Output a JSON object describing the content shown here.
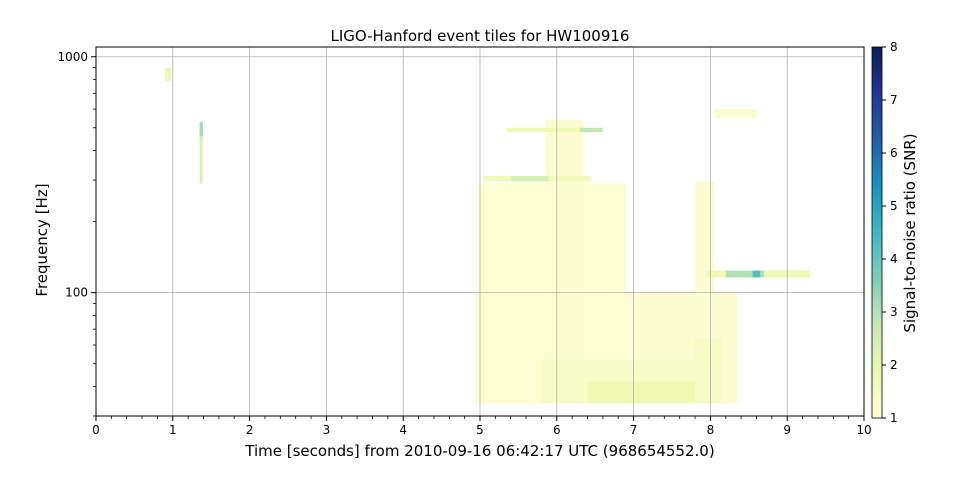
{
  "chart_data": {
    "type": "heatmap",
    "title": "LIGO-Hanford event tiles for HW100916",
    "xlabel": "Time [seconds] from 2010-09-16 06:42:17 UTC (968654552.0)",
    "ylabel": "Frequency [Hz]",
    "xlim": [
      0,
      10
    ],
    "ylim": [
      30,
      1100
    ],
    "yscale": "log",
    "x_ticks": [
      "0",
      "1",
      "2",
      "3",
      "4",
      "5",
      "6",
      "7",
      "8",
      "9",
      "10"
    ],
    "y_ticks": [
      "100",
      "1000"
    ],
    "grid": true,
    "colorbar": {
      "label": "Signal-to-noise ratio (SNR)",
      "range": [
        1,
        8
      ],
      "ticks": [
        "1",
        "2",
        "3",
        "4",
        "5",
        "6",
        "7",
        "8"
      ],
      "colormap": "YlGnBu"
    },
    "tiles": [
      {
        "t0": 4.95,
        "t1": 8.35,
        "f0": 34,
        "f1": 100,
        "snr": 1.2
      },
      {
        "t0": 4.97,
        "t1": 6.9,
        "f0": 34,
        "f1": 290,
        "snr": 1.15
      },
      {
        "t0": 5.85,
        "t1": 6.35,
        "f0": 34,
        "f1": 540,
        "snr": 1.2
      },
      {
        "t0": 7.8,
        "t1": 8.05,
        "f0": 34,
        "f1": 295,
        "snr": 1.2
      },
      {
        "t0": 5.8,
        "t1": 8.15,
        "f0": 34,
        "f1": 52,
        "snr": 1.4
      },
      {
        "t0": 6.4,
        "t1": 7.8,
        "f0": 34,
        "f1": 42,
        "snr": 1.8
      },
      {
        "t0": 7.8,
        "t1": 8.15,
        "f0": 50,
        "f1": 64,
        "snr": 1.5
      },
      {
        "t0": 5.35,
        "t1": 6.6,
        "f0": 480,
        "f1": 500,
        "snr": 1.8
      },
      {
        "t0": 6.3,
        "t1": 6.6,
        "f0": 480,
        "f1": 500,
        "snr": 2.8
      },
      {
        "t0": 5.05,
        "t1": 6.45,
        "f0": 296,
        "f1": 312,
        "snr": 1.7
      },
      {
        "t0": 5.4,
        "t1": 5.9,
        "f0": 296,
        "f1": 312,
        "snr": 2.4
      },
      {
        "t0": 7.95,
        "t1": 9.3,
        "f0": 116,
        "f1": 124,
        "snr": 1.8
      },
      {
        "t0": 8.2,
        "t1": 8.7,
        "f0": 116,
        "f1": 124,
        "snr": 3.0
      },
      {
        "t0": 8.55,
        "t1": 8.65,
        "f0": 116,
        "f1": 124,
        "snr": 4.2
      },
      {
        "t0": 8.05,
        "t1": 8.6,
        "f0": 550,
        "f1": 600,
        "snr": 1.2
      },
      {
        "t0": 0.9,
        "t1": 0.98,
        "f0": 790,
        "f1": 900,
        "snr": 1.8
      },
      {
        "t0": 1.35,
        "t1": 1.39,
        "f0": 290,
        "f1": 530,
        "snr": 2.3
      },
      {
        "t0": 1.35,
        "t1": 1.39,
        "f0": 460,
        "f1": 530,
        "snr": 3.2
      }
    ]
  }
}
